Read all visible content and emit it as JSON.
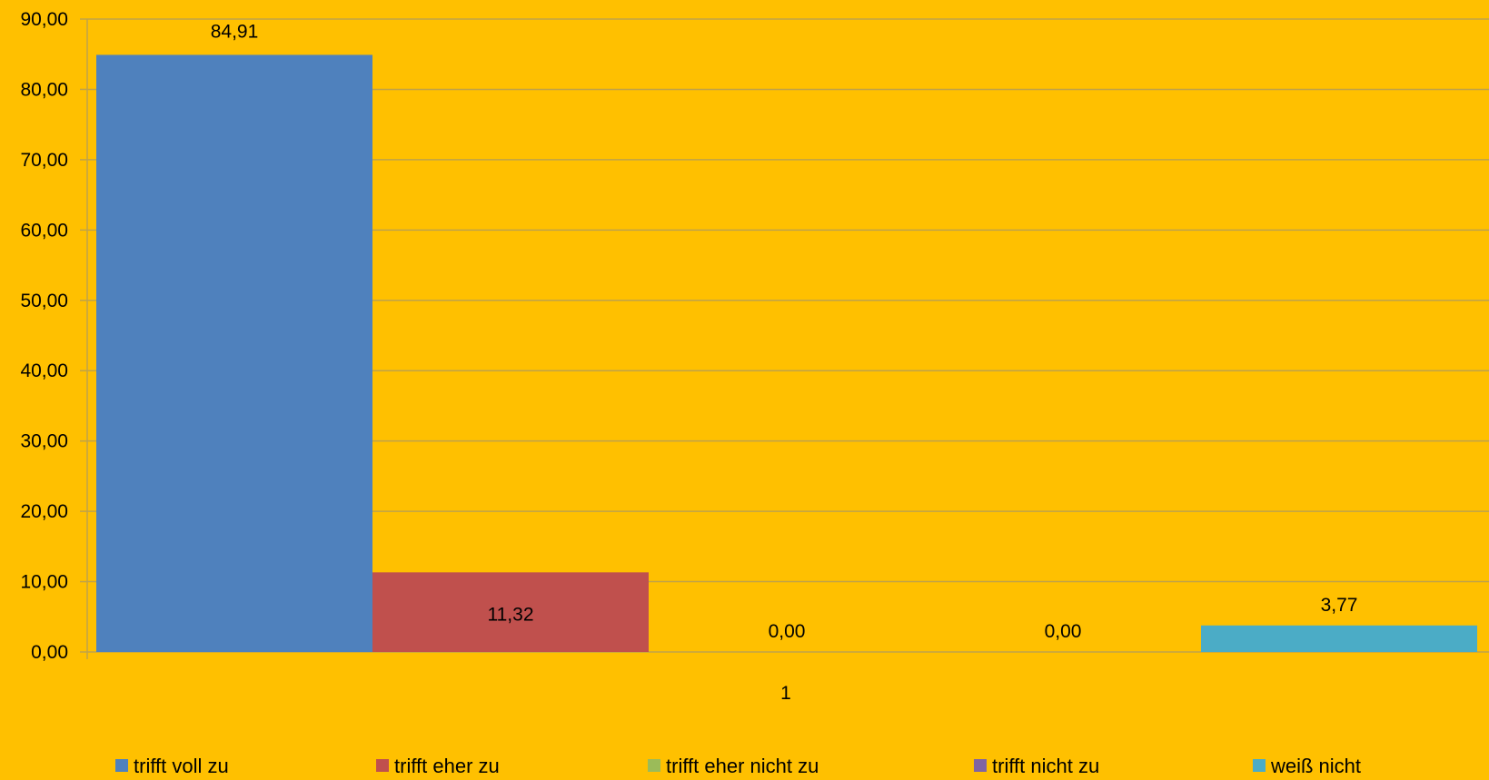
{
  "chart_data": {
    "type": "bar",
    "categories": [
      "1"
    ],
    "series": [
      {
        "name": "trifft voll zu",
        "values": [
          84.91
        ],
        "label": "84,91",
        "color": "#4F81BD"
      },
      {
        "name": "trifft eher zu",
        "values": [
          11.32
        ],
        "label": "11,32",
        "color": "#C0504D"
      },
      {
        "name": "trifft eher nicht zu",
        "values": [
          0.0
        ],
        "label": "0,00",
        "color": "#9BBB59"
      },
      {
        "name": "trifft nicht zu",
        "values": [
          0.0
        ],
        "label": "0,00",
        "color": "#8064A2"
      },
      {
        "name": "weiß nicht",
        "values": [
          3.77
        ],
        "label": "3,77",
        "color": "#4BACC6"
      }
    ],
    "ylim": [
      0,
      90
    ],
    "yticks": [
      {
        "value": 0,
        "label": "0,00"
      },
      {
        "value": 10,
        "label": "10,00"
      },
      {
        "value": 20,
        "label": "20,00"
      },
      {
        "value": 30,
        "label": "30,00"
      },
      {
        "value": 40,
        "label": "40,00"
      },
      {
        "value": 50,
        "label": "50,00"
      },
      {
        "value": 60,
        "label": "60,00"
      },
      {
        "value": 70,
        "label": "70,00"
      },
      {
        "value": 80,
        "label": "80,00"
      },
      {
        "value": 90,
        "label": "90,00"
      }
    ],
    "grid": true,
    "legend": "bottom",
    "background_color": "#FFC000",
    "grid_color": "#BFA24A"
  }
}
